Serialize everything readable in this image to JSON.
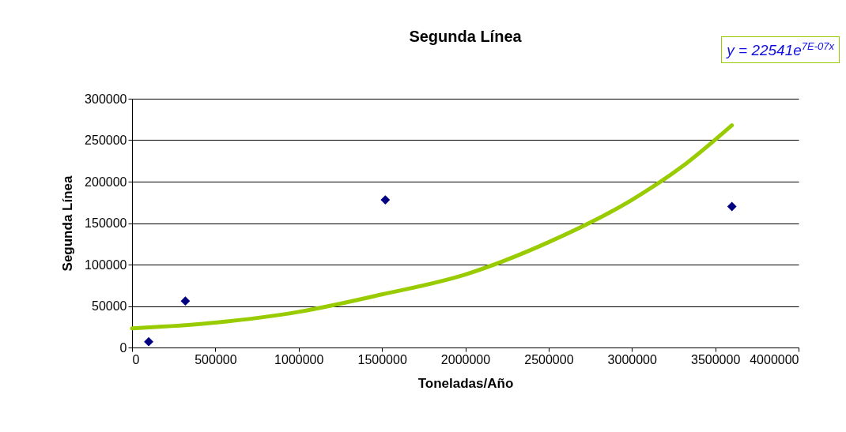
{
  "chart_data": {
    "type": "scatter",
    "title": "Segunda  Línea",
    "xlabel": "Toneladas/Año",
    "ylabel": "Segunda Línea",
    "xlim": [
      0,
      4000000
    ],
    "xticks": [
      0,
      500000,
      1000000,
      1500000,
      2000000,
      2500000,
      3000000,
      3500000,
      4000000
    ],
    "ylim": [
      0,
      300000
    ],
    "yticks": [
      0,
      50000,
      100000,
      150000,
      200000,
      250000,
      300000
    ],
    "grid": "y",
    "legend": false,
    "annotations": [
      "y = 22541e$^{7E-07x}$"
    ],
    "series": [
      {
        "marker": "diamond",
        "color": "#000080",
        "x": [
          100000,
          320000,
          1520000,
          3600000
        ],
        "values": [
          7000,
          56000,
          178000,
          170000
        ]
      },
      {
        "type": "line",
        "marker": "none",
        "color": "#99cc00",
        "x": [
          0,
          500000,
          1000000,
          1500000,
          2000000,
          2500000,
          3000000,
          3300000,
          3600000
        ],
        "values": [
          23000,
          30000,
          43000,
          64000,
          88000,
          127000,
          178000,
          218000,
          268000
        ]
      }
    ]
  }
}
